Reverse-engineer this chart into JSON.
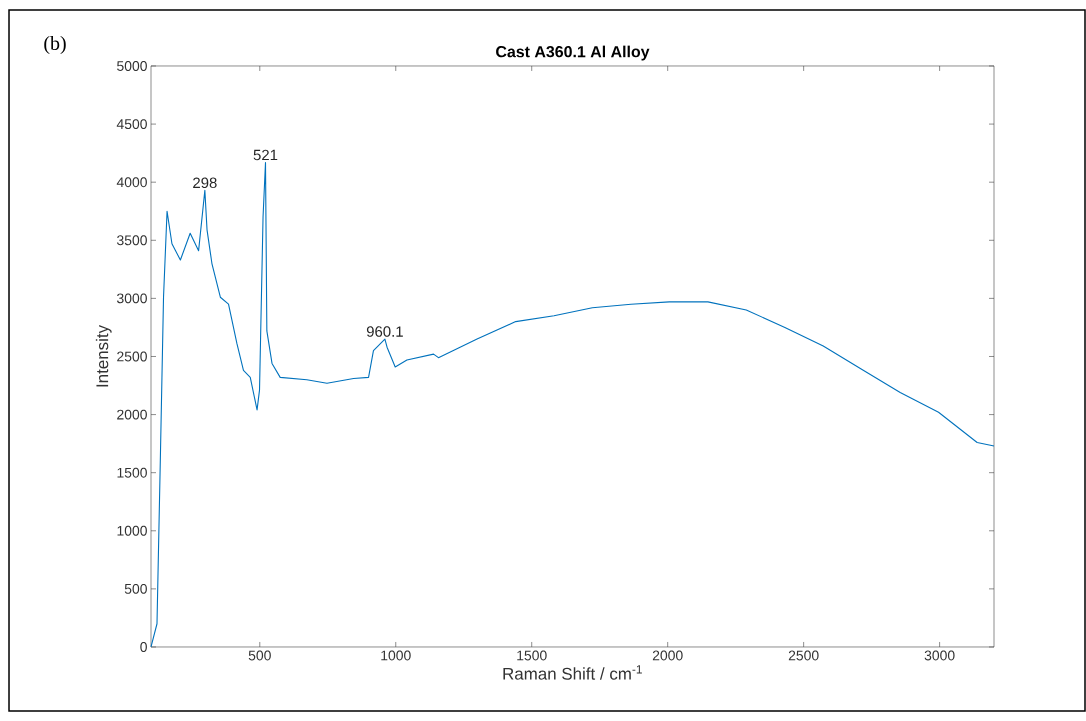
{
  "chart_data": {
    "type": "line",
    "title": "Cast A360.1 Al Alloy",
    "xlabel": "Raman Shift / cm$^{-1}$",
    "ylabel": "Intensity",
    "xlim": [
      100,
      3200
    ],
    "xticks": [
      500,
      1000,
      1500,
      2000,
      2500,
      3000
    ],
    "ylim": [
      0,
      5000
    ],
    "yticks": [
      0,
      500,
      1000,
      1500,
      2000,
      2500,
      3000,
      3500,
      4000,
      4500,
      5000
    ],
    "grid": false,
    "annotations": [
      "(b)",
      {
        "text": "298",
        "x": 298,
        "y": 3930
      },
      {
        "text": "521",
        "x": 521,
        "y": 4170
      },
      {
        "text": "960.1",
        "x": 960.1,
        "y": 2650
      }
    ],
    "series": [
      {
        "color": "#0072bd",
        "x": [
          100,
          122,
          134,
          146,
          159,
          177,
          208,
          244,
          275,
          298,
          306,
          324,
          355,
          385,
          416,
          440,
          465,
          490,
          499,
          512,
          521,
          526,
          545,
          575,
          673,
          747,
          845,
          900,
          918,
          960.1,
          968,
          998,
          1041,
          1139,
          1157,
          1299,
          1441,
          1582,
          1723,
          1865,
          2006,
          2148,
          2289,
          2431,
          2572,
          2713,
          2855,
          2996,
          3138,
          3200
        ],
        "values": [
          0,
          200,
          1580,
          3010,
          3750,
          3470,
          3330,
          3560,
          3410,
          3930,
          3590,
          3300,
          3010,
          2950,
          2610,
          2380,
          2320,
          2040,
          2210,
          3700,
          4170,
          2720,
          2440,
          2320,
          2300,
          2270,
          2310,
          2320,
          2550,
          2650,
          2580,
          2410,
          2470,
          2520,
          2490,
          2650,
          2800,
          2850,
          2920,
          2950,
          2970,
          2970,
          2900,
          2750,
          2590,
          2390,
          2190,
          2020,
          1760,
          1730
        ]
      }
    ]
  }
}
